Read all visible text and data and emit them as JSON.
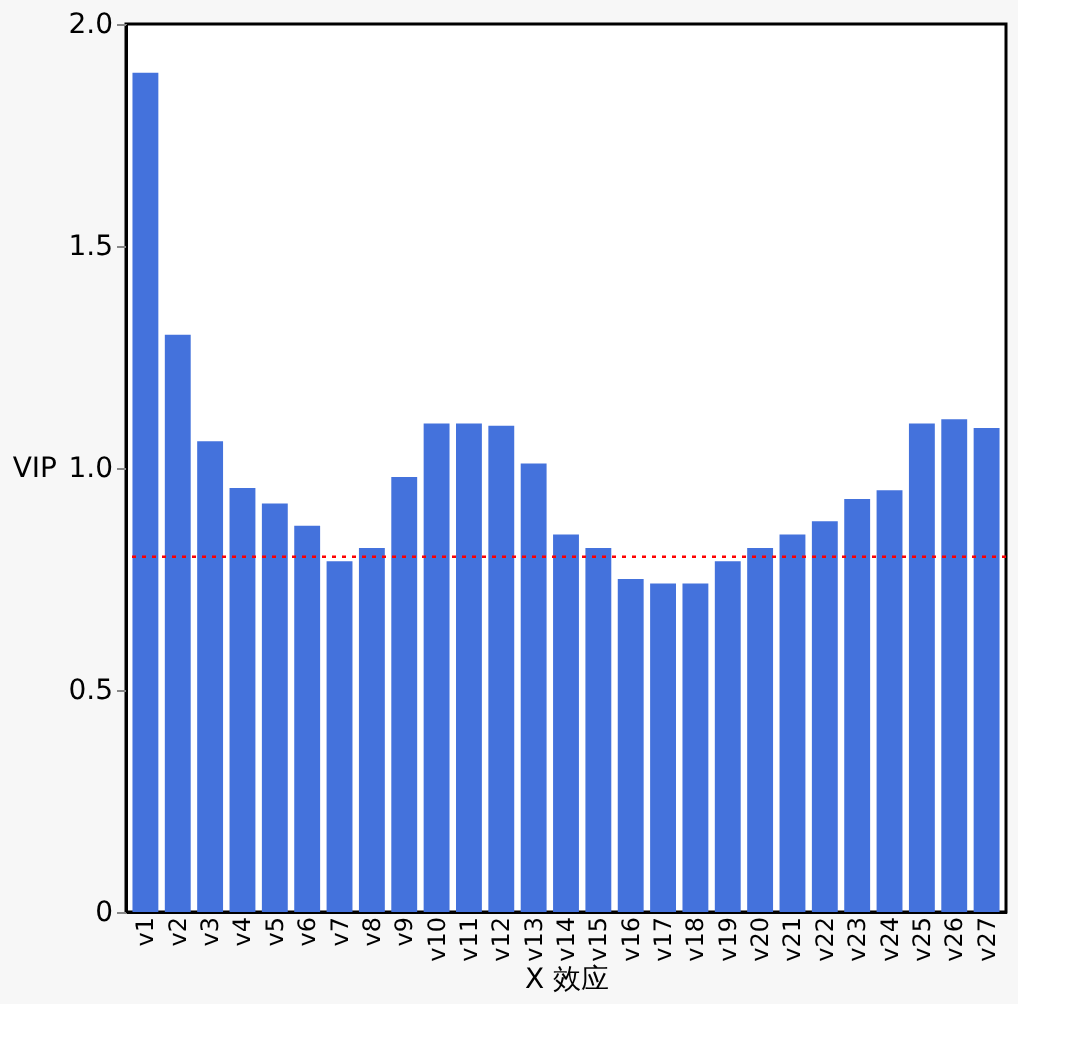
{
  "chart_data": {
    "type": "bar",
    "xlabel": "X 效应",
    "ylabel": "VIP",
    "categories": [
      "v1",
      "v2",
      "v3",
      "v4",
      "v5",
      "v6",
      "v7",
      "v8",
      "v9",
      "v10",
      "v11",
      "v12",
      "v13",
      "v14",
      "v15",
      "v16",
      "v17",
      "v18",
      "v19",
      "v20",
      "v21",
      "v22",
      "v23",
      "v24",
      "v25",
      "v26",
      "v27"
    ],
    "values": [
      1.89,
      1.3,
      1.06,
      0.955,
      0.92,
      0.87,
      0.79,
      0.82,
      0.98,
      1.1,
      1.1,
      1.095,
      1.01,
      0.85,
      0.82,
      0.75,
      0.74,
      0.74,
      0.79,
      0.82,
      0.85,
      0.88,
      0.93,
      0.95,
      1.1,
      1.11,
      1.09
    ],
    "color": "#4472dc",
    "ylim": [
      0,
      2.0
    ],
    "yticks": [
      0,
      0.5,
      {
        "value": 1,
        "label": "1.0"
      },
      1.5,
      {
        "value": 2,
        "label": "2.0"
      }
    ],
    "ref_lines": [
      {
        "axis": "y",
        "value": 0.8,
        "color": "#ff0000",
        "line_style": "dotted"
      }
    ],
    "grid": false
  }
}
